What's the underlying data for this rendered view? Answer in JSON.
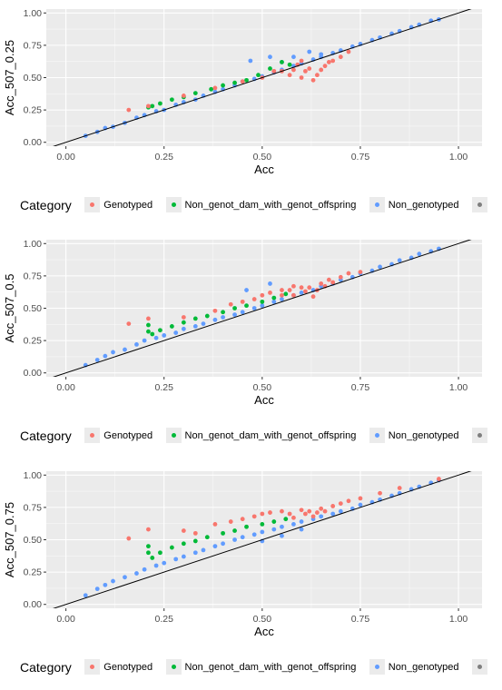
{
  "colors": {
    "Genotyped": "#f8766d",
    "Non_genot_dam_with_genot_offspring": "#00ba38",
    "Non_genotyped": "#619cff",
    "NA": "#7f7f7f",
    "panel_bg": "#ebebeb",
    "grid": "#ffffff",
    "reference_line": "#000000"
  },
  "legend": {
    "title": "Category",
    "entries": [
      "Genotyped",
      "Non_genot_dam_with_genot_offspring",
      "Non_genotyped",
      ""
    ]
  },
  "chart_data": [
    {
      "type": "scatter",
      "title": "",
      "xlabel": "Acc",
      "ylabel": "Acc_507_0.25",
      "xlim": [
        -0.05,
        1.06
      ],
      "ylim": [
        -0.03,
        1.03
      ],
      "x_ticks": [
        "0.00",
        "0.25",
        "0.50",
        "0.75",
        "1.00"
      ],
      "y_ticks": [
        "0.00",
        "0.25",
        "0.50",
        "0.75",
        "1.00"
      ],
      "reference_line": {
        "slope": 1,
        "intercept": 0
      },
      "grid": true,
      "series": [
        {
          "name": "Non_genotyped",
          "points": [
            [
              0.05,
              0.05
            ],
            [
              0.08,
              0.08
            ],
            [
              0.1,
              0.11
            ],
            [
              0.12,
              0.12
            ],
            [
              0.15,
              0.15
            ],
            [
              0.18,
              0.19
            ],
            [
              0.2,
              0.21
            ],
            [
              0.23,
              0.24
            ],
            [
              0.25,
              0.25
            ],
            [
              0.28,
              0.29
            ],
            [
              0.3,
              0.31
            ],
            [
              0.33,
              0.33
            ],
            [
              0.35,
              0.36
            ],
            [
              0.38,
              0.39
            ],
            [
              0.4,
              0.41
            ],
            [
              0.43,
              0.44
            ],
            [
              0.45,
              0.47
            ],
            [
              0.48,
              0.49
            ],
            [
              0.5,
              0.51
            ],
            [
              0.53,
              0.54
            ],
            [
              0.55,
              0.56
            ],
            [
              0.58,
              0.59
            ],
            [
              0.6,
              0.61
            ],
            [
              0.63,
              0.64
            ],
            [
              0.65,
              0.66
            ],
            [
              0.68,
              0.69
            ],
            [
              0.7,
              0.71
            ],
            [
              0.73,
              0.74
            ],
            [
              0.75,
              0.76
            ],
            [
              0.78,
              0.79
            ],
            [
              0.8,
              0.81
            ],
            [
              0.83,
              0.84
            ],
            [
              0.85,
              0.86
            ],
            [
              0.88,
              0.89
            ],
            [
              0.9,
              0.91
            ],
            [
              0.93,
              0.94
            ],
            [
              0.95,
              0.95
            ],
            [
              0.52,
              0.66
            ],
            [
              0.55,
              0.62
            ],
            [
              0.47,
              0.63
            ],
            [
              0.62,
              0.7
            ],
            [
              0.65,
              0.68
            ],
            [
              0.58,
              0.66
            ]
          ]
        },
        {
          "name": "Non_genot_dam_with_genot_offspring",
          "points": [
            [
              0.21,
              0.27
            ],
            [
              0.22,
              0.28
            ],
            [
              0.24,
              0.3
            ],
            [
              0.27,
              0.33
            ],
            [
              0.3,
              0.35
            ],
            [
              0.33,
              0.38
            ],
            [
              0.37,
              0.41
            ],
            [
              0.4,
              0.44
            ],
            [
              0.43,
              0.46
            ],
            [
              0.46,
              0.48
            ],
            [
              0.49,
              0.52
            ],
            [
              0.52,
              0.57
            ],
            [
              0.55,
              0.62
            ],
            [
              0.57,
              0.6
            ]
          ]
        },
        {
          "name": "Genotyped",
          "points": [
            [
              0.16,
              0.25
            ],
            [
              0.21,
              0.28
            ],
            [
              0.3,
              0.36
            ],
            [
              0.38,
              0.42
            ],
            [
              0.45,
              0.47
            ],
            [
              0.5,
              0.5
            ],
            [
              0.53,
              0.55
            ],
            [
              0.55,
              0.55
            ],
            [
              0.57,
              0.52
            ],
            [
              0.58,
              0.56
            ],
            [
              0.6,
              0.5
            ],
            [
              0.61,
              0.55
            ],
            [
              0.62,
              0.57
            ],
            [
              0.63,
              0.48
            ],
            [
              0.64,
              0.52
            ],
            [
              0.65,
              0.56
            ],
            [
              0.66,
              0.59
            ],
            [
              0.67,
              0.62
            ],
            [
              0.68,
              0.63
            ],
            [
              0.7,
              0.66
            ],
            [
              0.72,
              0.7
            ],
            [
              0.6,
              0.63
            ],
            [
              0.59,
              0.6
            ]
          ]
        }
      ]
    },
    {
      "type": "scatter",
      "title": "",
      "xlabel": "Acc",
      "ylabel": "Acc_507_0.5",
      "xlim": [
        -0.05,
        1.06
      ],
      "ylim": [
        -0.03,
        1.03
      ],
      "x_ticks": [
        "0.00",
        "0.25",
        "0.50",
        "0.75",
        "1.00"
      ],
      "y_ticks": [
        "0.00",
        "0.25",
        "0.50",
        "0.75",
        "1.00"
      ],
      "reference_line": {
        "slope": 1,
        "intercept": 0
      },
      "grid": true,
      "series": [
        {
          "name": "Non_genotyped",
          "points": [
            [
              0.05,
              0.06
            ],
            [
              0.08,
              0.1
            ],
            [
              0.1,
              0.13
            ],
            [
              0.12,
              0.16
            ],
            [
              0.15,
              0.18
            ],
            [
              0.18,
              0.22
            ],
            [
              0.2,
              0.25
            ],
            [
              0.23,
              0.27
            ],
            [
              0.25,
              0.29
            ],
            [
              0.28,
              0.31
            ],
            [
              0.3,
              0.34
            ],
            [
              0.33,
              0.36
            ],
            [
              0.35,
              0.38
            ],
            [
              0.38,
              0.41
            ],
            [
              0.4,
              0.43
            ],
            [
              0.43,
              0.45
            ],
            [
              0.45,
              0.47
            ],
            [
              0.48,
              0.5
            ],
            [
              0.5,
              0.52
            ],
            [
              0.53,
              0.55
            ],
            [
              0.55,
              0.57
            ],
            [
              0.58,
              0.6
            ],
            [
              0.6,
              0.62
            ],
            [
              0.63,
              0.64
            ],
            [
              0.65,
              0.67
            ],
            [
              0.68,
              0.69
            ],
            [
              0.7,
              0.72
            ],
            [
              0.73,
              0.74
            ],
            [
              0.75,
              0.77
            ],
            [
              0.78,
              0.79
            ],
            [
              0.8,
              0.82
            ],
            [
              0.83,
              0.84
            ],
            [
              0.85,
              0.87
            ],
            [
              0.88,
              0.89
            ],
            [
              0.9,
              0.92
            ],
            [
              0.93,
              0.94
            ],
            [
              0.95,
              0.96
            ],
            [
              0.52,
              0.69
            ],
            [
              0.46,
              0.64
            ]
          ]
        },
        {
          "name": "Non_genot_dam_with_genot_offspring",
          "points": [
            [
              0.21,
              0.37
            ],
            [
              0.21,
              0.32
            ],
            [
              0.22,
              0.3
            ],
            [
              0.24,
              0.33
            ],
            [
              0.27,
              0.36
            ],
            [
              0.3,
              0.39
            ],
            [
              0.33,
              0.42
            ],
            [
              0.36,
              0.44
            ],
            [
              0.4,
              0.47
            ],
            [
              0.43,
              0.5
            ],
            [
              0.46,
              0.52
            ],
            [
              0.5,
              0.55
            ],
            [
              0.53,
              0.58
            ],
            [
              0.56,
              0.61
            ]
          ]
        },
        {
          "name": "Genotyped",
          "points": [
            [
              0.16,
              0.38
            ],
            [
              0.21,
              0.42
            ],
            [
              0.3,
              0.43
            ],
            [
              0.38,
              0.48
            ],
            [
              0.42,
              0.53
            ],
            [
              0.45,
              0.55
            ],
            [
              0.48,
              0.57
            ],
            [
              0.5,
              0.6
            ],
            [
              0.52,
              0.62
            ],
            [
              0.55,
              0.64
            ],
            [
              0.57,
              0.64
            ],
            [
              0.58,
              0.6
            ],
            [
              0.6,
              0.66
            ],
            [
              0.61,
              0.63
            ],
            [
              0.62,
              0.66
            ],
            [
              0.63,
              0.59
            ],
            [
              0.64,
              0.64
            ],
            [
              0.65,
              0.69
            ],
            [
              0.66,
              0.67
            ],
            [
              0.67,
              0.72
            ],
            [
              0.68,
              0.7
            ],
            [
              0.7,
              0.74
            ],
            [
              0.72,
              0.77
            ],
            [
              0.75,
              0.78
            ],
            [
              0.58,
              0.67
            ],
            [
              0.55,
              0.6
            ]
          ]
        }
      ]
    },
    {
      "type": "scatter",
      "title": "",
      "xlabel": "Acc",
      "ylabel": "Acc_507_0.75",
      "xlim": [
        -0.05,
        1.06
      ],
      "ylim": [
        -0.03,
        1.03
      ],
      "x_ticks": [
        "0.00",
        "0.25",
        "0.50",
        "0.75",
        "1.00"
      ],
      "y_ticks": [
        "0.00",
        "0.25",
        "0.50",
        "0.75",
        "1.00"
      ],
      "reference_line": {
        "slope": 1,
        "intercept": 0
      },
      "grid": true,
      "series": [
        {
          "name": "Non_genotyped",
          "points": [
            [
              0.05,
              0.07
            ],
            [
              0.08,
              0.12
            ],
            [
              0.1,
              0.15
            ],
            [
              0.12,
              0.18
            ],
            [
              0.15,
              0.21
            ],
            [
              0.18,
              0.24
            ],
            [
              0.2,
              0.27
            ],
            [
              0.23,
              0.3
            ],
            [
              0.25,
              0.32
            ],
            [
              0.28,
              0.35
            ],
            [
              0.3,
              0.37
            ],
            [
              0.33,
              0.4
            ],
            [
              0.35,
              0.42
            ],
            [
              0.38,
              0.45
            ],
            [
              0.4,
              0.47
            ],
            [
              0.43,
              0.5
            ],
            [
              0.45,
              0.52
            ],
            [
              0.48,
              0.54
            ],
            [
              0.5,
              0.56
            ],
            [
              0.53,
              0.58
            ],
            [
              0.55,
              0.6
            ],
            [
              0.58,
              0.62
            ],
            [
              0.6,
              0.64
            ],
            [
              0.63,
              0.66
            ],
            [
              0.65,
              0.68
            ],
            [
              0.68,
              0.7
            ],
            [
              0.7,
              0.72
            ],
            [
              0.73,
              0.74
            ],
            [
              0.75,
              0.77
            ],
            [
              0.78,
              0.79
            ],
            [
              0.8,
              0.81
            ],
            [
              0.83,
              0.84
            ],
            [
              0.85,
              0.86
            ],
            [
              0.88,
              0.89
            ],
            [
              0.9,
              0.91
            ],
            [
              0.93,
              0.94
            ],
            [
              0.95,
              0.96
            ],
            [
              0.5,
              0.49
            ],
            [
              0.55,
              0.53
            ],
            [
              0.6,
              0.58
            ]
          ]
        },
        {
          "name": "Non_genot_dam_with_genot_offspring",
          "points": [
            [
              0.21,
              0.45
            ],
            [
              0.21,
              0.4
            ],
            [
              0.22,
              0.36
            ],
            [
              0.24,
              0.4
            ],
            [
              0.27,
              0.44
            ],
            [
              0.3,
              0.47
            ],
            [
              0.33,
              0.49
            ],
            [
              0.36,
              0.52
            ],
            [
              0.4,
              0.55
            ],
            [
              0.43,
              0.57
            ],
            [
              0.46,
              0.6
            ],
            [
              0.5,
              0.62
            ],
            [
              0.53,
              0.64
            ],
            [
              0.56,
              0.66
            ]
          ]
        },
        {
          "name": "Genotyped",
          "points": [
            [
              0.16,
              0.51
            ],
            [
              0.21,
              0.58
            ],
            [
              0.3,
              0.57
            ],
            [
              0.33,
              0.55
            ],
            [
              0.38,
              0.62
            ],
            [
              0.42,
              0.64
            ],
            [
              0.45,
              0.66
            ],
            [
              0.48,
              0.68
            ],
            [
              0.5,
              0.7
            ],
            [
              0.52,
              0.71
            ],
            [
              0.55,
              0.72
            ],
            [
              0.57,
              0.7
            ],
            [
              0.58,
              0.67
            ],
            [
              0.6,
              0.73
            ],
            [
              0.61,
              0.7
            ],
            [
              0.62,
              0.72
            ],
            [
              0.63,
              0.68
            ],
            [
              0.64,
              0.71
            ],
            [
              0.65,
              0.74
            ],
            [
              0.66,
              0.72
            ],
            [
              0.68,
              0.76
            ],
            [
              0.7,
              0.78
            ],
            [
              0.72,
              0.8
            ],
            [
              0.75,
              0.82
            ],
            [
              0.8,
              0.86
            ],
            [
              0.85,
              0.9
            ],
            [
              0.95,
              0.97
            ]
          ]
        }
      ]
    }
  ]
}
